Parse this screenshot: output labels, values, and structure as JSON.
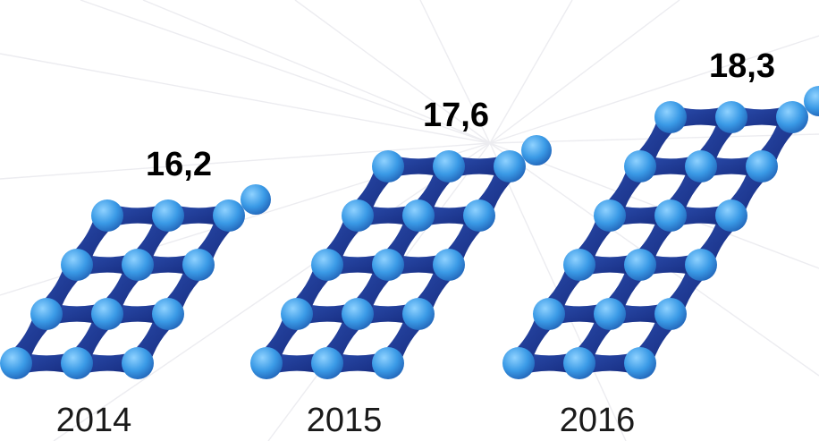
{
  "chart_data": {
    "type": "bar",
    "categories": [
      "2014",
      "2015",
      "2016"
    ],
    "values": [
      16.2,
      17.6,
      18.3
    ],
    "value_labels": [
      "16,2",
      "17,6",
      "18,3"
    ],
    "title": "",
    "xlabel": "",
    "ylabel": "",
    "legend": "none",
    "grid": false,
    "style": "pictograph of connected molecule-like spheres"
  },
  "colors": {
    "sphere_light": "#8fd2ff",
    "sphere_mid": "#3a9ae6",
    "sphere_dark": "#1f5fb4",
    "bond_dark": "#14287a",
    "bond_mid": "#2c4fb0",
    "background_lines": "#ececf0"
  }
}
